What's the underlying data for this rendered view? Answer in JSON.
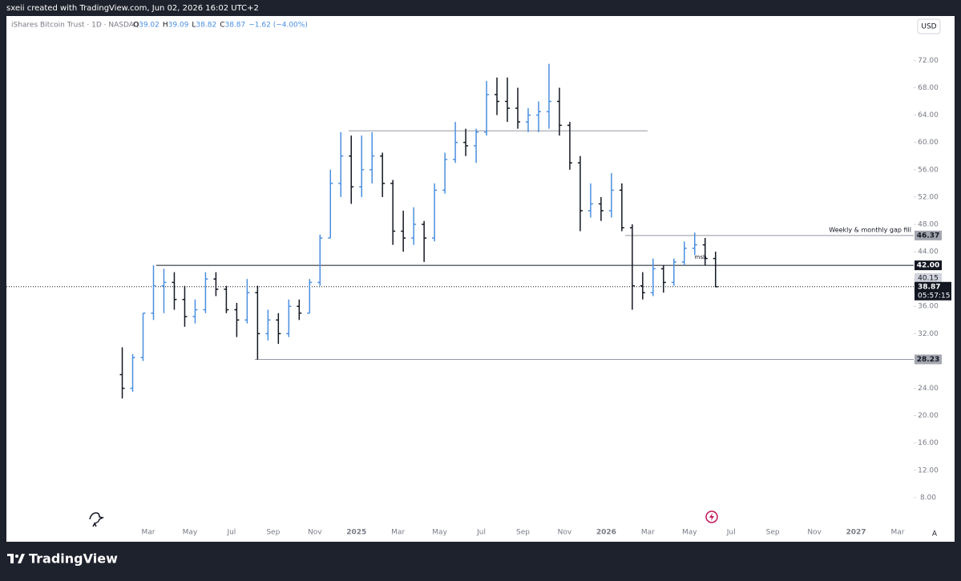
{
  "header": {
    "credit": "sxeii created with TradingView.com, Jun 02, 2026 16:02 UTC+2",
    "currency": "USD",
    "brand": "TradingView",
    "scale_mode": "A"
  },
  "chart_data": {
    "type": "ohlc",
    "title": "iShares Bitcoin Trust · 1D · NASDAQ",
    "legend": {
      "o_label": "O",
      "o": "39.02",
      "h_label": "H",
      "h": "39.09",
      "l_label": "L",
      "l": "38.82",
      "c_label": "C",
      "c": "38.87",
      "change": "−1.62 (−4.00%)"
    },
    "up_color": "#4a8fe0",
    "down_color": "#131722",
    "categories": [
      null,
      null,
      null,
      "Mar",
      null,
      null,
      null,
      "May",
      null,
      null,
      null,
      "Jul",
      null,
      null,
      null,
      "Sep",
      null,
      null,
      null,
      "Nov",
      null,
      null,
      null,
      "2025",
      null,
      null,
      null,
      "Mar",
      null,
      null,
      null,
      "May",
      null,
      null,
      null,
      "Jul",
      null,
      null,
      null,
      "Sep",
      null,
      null,
      null,
      "Nov",
      null,
      null,
      null,
      "2026",
      null,
      null,
      null,
      "Mar",
      null,
      null,
      null,
      "May",
      null,
      null,
      null,
      "Jul",
      null,
      null,
      null,
      "Sep",
      null,
      null,
      null,
      "Nov",
      null,
      null,
      null,
      "2027",
      null,
      null,
      null,
      "Mar"
    ],
    "open": [
      26,
      24,
      28.5,
      35,
      39,
      39.5,
      37,
      34.5,
      35.5,
      40,
      38.5,
      35.5,
      34,
      38,
      32,
      34,
      32,
      36,
      35,
      39.5,
      46,
      54,
      58,
      53.5,
      56,
      58,
      54,
      47,
      46,
      48,
      46,
      53,
      57.5,
      60,
      59.5,
      61.5,
      67,
      66,
      65,
      63,
      64,
      64.5,
      66,
      62.5,
      57,
      50,
      51,
      50,
      53,
      47.5,
      39,
      38,
      41.5,
      39.5,
      42.5,
      44.5,
      45,
      43,
      null,
      null,
      null,
      null,
      null,
      null,
      null,
      null,
      null,
      null,
      null,
      null,
      null,
      null,
      null,
      null,
      null,
      null
    ],
    "high": [
      30,
      29,
      35,
      42,
      41.5,
      41,
      39,
      37,
      41,
      41,
      39,
      36.5,
      40,
      39,
      35.5,
      35,
      37,
      37,
      40,
      46.5,
      56,
      61.5,
      61,
      61,
      61.5,
      58.5,
      54.5,
      50,
      50.5,
      48.5,
      54,
      58.5,
      63,
      62,
      62,
      69,
      69.5,
      69.5,
      68,
      65,
      66,
      71.5,
      68,
      63,
      58,
      54,
      52,
      55.5,
      54,
      48,
      41,
      43,
      42,
      43,
      45.5,
      46.8,
      46,
      44,
      null,
      null,
      null,
      null,
      null,
      null,
      null,
      null,
      null,
      null,
      null,
      null,
      null,
      null,
      null,
      null,
      null,
      null
    ],
    "low": [
      22.5,
      23.5,
      28,
      34,
      35,
      35.5,
      33,
      33.5,
      35,
      37.5,
      35,
      31.5,
      33.5,
      28.2,
      31,
      30.5,
      31.5,
      34,
      35,
      39,
      46,
      52,
      51,
      52,
      54,
      52,
      45,
      44,
      45,
      42.5,
      45.5,
      52.5,
      57,
      58,
      57,
      61,
      64,
      63,
      62,
      61.5,
      61.5,
      62,
      61,
      56,
      47,
      49,
      48.5,
      49,
      47,
      35.5,
      37,
      37.5,
      38,
      39,
      42,
      43.5,
      42,
      38.8,
      null,
      null,
      null,
      null,
      null,
      null,
      null,
      null,
      null,
      null,
      null,
      null,
      null,
      null,
      null,
      null,
      null,
      null
    ],
    "close": [
      24,
      28.5,
      35,
      39,
      39.5,
      37,
      34.5,
      35.5,
      40,
      38.5,
      35.5,
      34,
      38,
      32,
      34,
      32,
      36,
      35,
      39.5,
      46,
      54,
      58,
      53.5,
      56,
      58,
      54,
      47,
      46,
      48,
      46,
      53,
      57.5,
      60,
      59.5,
      61.5,
      67,
      66,
      65,
      63,
      64,
      64.5,
      66,
      62.5,
      57,
      50,
      51,
      50,
      53,
      47.5,
      39,
      38,
      41.5,
      39.5,
      42.5,
      44.5,
      45,
      43,
      38.87,
      null,
      null,
      null,
      null,
      null,
      null,
      null,
      null,
      null,
      null,
      null,
      null,
      null,
      null,
      null,
      null,
      null,
      null
    ],
    "ylim": [
      4,
      78.5
    ],
    "yticks": [
      {
        "value": 8,
        "label": "8.00"
      },
      {
        "value": 12,
        "label": "12.00"
      },
      {
        "value": 16,
        "label": "16.00"
      },
      {
        "value": 20,
        "label": "20.00"
      },
      {
        "value": 24,
        "label": "24.00"
      },
      {
        "value": 28,
        "label": "28.00"
      },
      {
        "value": 32,
        "label": "32.00"
      },
      {
        "value": 36,
        "label": "36.00"
      },
      {
        "value": 40,
        "label": "40.00"
      },
      {
        "value": 44,
        "label": "44.00"
      },
      {
        "value": 48,
        "label": "48.00"
      },
      {
        "value": 52,
        "label": "52.00"
      },
      {
        "value": 56,
        "label": "56.00"
      },
      {
        "value": 60,
        "label": "60.00"
      },
      {
        "value": 64,
        "label": "64.00"
      },
      {
        "value": 68,
        "label": "68.00"
      },
      {
        "value": 72,
        "label": "72.00"
      }
    ],
    "levels": [
      {
        "value": 61.7
      },
      {
        "value": 46.37,
        "label": "46.37",
        "note": "Weekly & monthly gap fill"
      },
      {
        "value": 42,
        "label": "42.00"
      },
      {
        "value": 28.23,
        "label": "28.23"
      }
    ],
    "price_tag": {
      "value": 40.15,
      "label": "40.15"
    },
    "last_price": {
      "value": 38.87,
      "label": "38.87",
      "countdown": "05:57:15"
    },
    "annotation": "msb"
  }
}
